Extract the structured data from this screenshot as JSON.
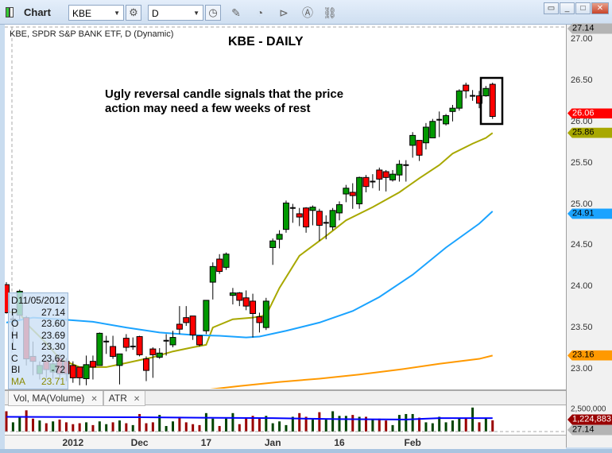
{
  "window": {
    "title": "Chart",
    "symbol": "KBE",
    "period": "D",
    "toolbar_icons": [
      "gear-icon",
      "clock-icon",
      "pencil-icon",
      "indicator-icon",
      "play-icon",
      "alert-icon",
      "link-icon"
    ],
    "window_buttons": [
      "restore-icon",
      "minimize-icon",
      "maximize-icon",
      "close-icon"
    ]
  },
  "chart": {
    "legend": "KBE, SPDR S&P BANK ETF, D (Dynamic)",
    "title": "KBE - DAILY",
    "annotation_line1": "Ugly reversal candle signals that the price",
    "annotation_line2": "action may need a few weeks of rest",
    "highlight_box_candles": [
      72,
      73
    ]
  },
  "price_axis": {
    "ticks": [
      "27.00",
      "26.50",
      "26.00",
      "25.50",
      "25.00",
      "24.50",
      "24.00",
      "23.50",
      "23.00"
    ],
    "tags": [
      {
        "label": "27.14",
        "color": "#b4b4b4",
        "text": "#000",
        "price": 27.14
      },
      {
        "label": "26.06",
        "color": "#ff0000",
        "text": "#fff",
        "price": 26.06
      },
      {
        "label": "25.86",
        "color": "#a8a800",
        "text": "#000",
        "price": 25.86
      },
      {
        "label": "24.91",
        "color": "#1aa3ff",
        "text": "#000",
        "price": 24.91
      },
      {
        "label": "23.16",
        "color": "#ff9900",
        "text": "#000",
        "price": 23.16
      }
    ]
  },
  "volume_axis": {
    "tick": "2,500,000",
    "last_volume": "1,224,883",
    "last_price": "27.14"
  },
  "tabs": [
    {
      "label": "Vol, MA(Volume)"
    },
    {
      "label": "ATR"
    }
  ],
  "x_axis": {
    "labels": [
      {
        "label": "2012",
        "index": 10
      },
      {
        "label": "Dec",
        "index": 20
      },
      {
        "label": "17",
        "index": 30
      },
      {
        "label": "Jan",
        "index": 40
      },
      {
        "label": "16",
        "index": 50
      },
      {
        "label": "Feb",
        "index": 61
      }
    ]
  },
  "tooltip": [
    {
      "k": "D",
      "v": "11/05/2012"
    },
    {
      "k": "P",
      "v": "27.14"
    },
    {
      "k": "O",
      "v": "23.60"
    },
    {
      "k": "H",
      "v": "23.69"
    },
    {
      "k": "L",
      "v": "23.30"
    },
    {
      "k": "C",
      "v": "23.62"
    },
    {
      "k": "BI",
      "v": "-72"
    },
    {
      "k": "MA",
      "v": "23.71"
    }
  ],
  "colors": {
    "up": "#009900",
    "down": "#ff0000",
    "ma_short": "#a8a800",
    "ma_mid": "#1aa3ff",
    "ma_long": "#ff9900",
    "vol_up": "#004400",
    "vol_down": "#990000",
    "vol_ma": "#0000ff"
  },
  "chart_data": {
    "type": "candlestick",
    "ylim": [
      22.75,
      27.2
    ],
    "ohlc": [
      [
        24.02,
        24.05,
        23.67,
        23.68
      ],
      [
        23.6,
        23.67,
        23.23,
        23.6
      ],
      [
        23.65,
        23.96,
        23.6,
        23.94
      ],
      [
        23.62,
        23.64,
        23.04,
        23.12
      ],
      [
        23.15,
        23.33,
        22.92,
        23.09
      ],
      [
        22.94,
        23.09,
        22.87,
        23.04
      ],
      [
        23.09,
        23.13,
        22.89,
        22.99
      ],
      [
        22.96,
        23.12,
        22.88,
        23.06
      ],
      [
        23.13,
        23.18,
        22.87,
        22.94
      ],
      [
        23.09,
        23.13,
        22.85,
        22.94
      ],
      [
        23.04,
        23.09,
        22.83,
        22.89
      ],
      [
        23.02,
        23.02,
        22.8,
        22.89
      ],
      [
        22.88,
        23.16,
        22.8,
        23.05
      ],
      [
        23.09,
        23.16,
        22.87,
        23.02
      ],
      [
        23.04,
        23.44,
        23.04,
        23.43
      ],
      [
        23.33,
        23.4,
        23.18,
        23.33
      ],
      [
        23.27,
        23.4,
        23.12,
        23.15
      ],
      [
        23.04,
        23.18,
        22.81,
        23.18
      ],
      [
        23.37,
        23.42,
        23.21,
        23.26
      ],
      [
        23.27,
        23.38,
        23.23,
        23.27
      ],
      [
        23.39,
        23.4,
        23.15,
        23.17
      ],
      [
        23.12,
        23.15,
        22.85,
        22.98
      ],
      [
        23.24,
        23.26,
        22.89,
        23.17
      ],
      [
        23.14,
        23.25,
        23.12,
        23.19
      ],
      [
        23.34,
        23.42,
        23.16,
        23.34
      ],
      [
        23.29,
        23.46,
        23.26,
        23.38
      ],
      [
        23.54,
        23.76,
        23.42,
        23.48
      ],
      [
        23.62,
        23.76,
        23.52,
        23.56
      ],
      [
        23.64,
        23.64,
        23.35,
        23.41
      ],
      [
        23.4,
        23.4,
        23.27,
        23.29
      ],
      [
        23.46,
        23.83,
        23.42,
        23.83
      ],
      [
        24.05,
        24.29,
        23.84,
        24.24
      ],
      [
        24.33,
        24.39,
        24.15,
        24.18
      ],
      [
        24.23,
        24.41,
        24.2,
        24.39
      ],
      [
        23.89,
        23.98,
        23.78,
        23.92
      ],
      [
        23.92,
        23.93,
        23.76,
        23.83
      ],
      [
        23.86,
        23.95,
        23.71,
        23.76
      ],
      [
        23.82,
        23.91,
        23.38,
        23.67
      ],
      [
        23.63,
        23.68,
        23.44,
        23.56
      ],
      [
        23.5,
        23.86,
        23.47,
        23.82
      ],
      [
        24.47,
        24.58,
        24.26,
        24.55
      ],
      [
        24.57,
        24.68,
        24.46,
        24.63
      ],
      [
        24.69,
        25.04,
        24.65,
        25.01
      ],
      [
        24.95,
        25.0,
        24.77,
        24.95
      ],
      [
        24.88,
        24.95,
        24.73,
        24.84
      ],
      [
        24.95,
        24.96,
        24.65,
        24.72
      ],
      [
        24.92,
        24.98,
        24.74,
        24.96
      ],
      [
        24.91,
        24.94,
        24.55,
        24.74
      ],
      [
        24.77,
        24.86,
        24.57,
        24.77
      ],
      [
        24.72,
        24.95,
        24.68,
        24.92
      ],
      [
        24.89,
        25.03,
        24.8,
        24.99
      ],
      [
        25.12,
        25.23,
        25.02,
        25.19
      ],
      [
        25.14,
        25.25,
        24.94,
        25.1
      ],
      [
        25.0,
        25.33,
        24.94,
        25.32
      ],
      [
        25.32,
        25.35,
        25.14,
        25.21
      ],
      [
        25.27,
        25.36,
        25.19,
        25.27
      ],
      [
        25.41,
        25.44,
        25.16,
        25.3
      ],
      [
        25.39,
        25.41,
        25.15,
        25.32
      ],
      [
        25.29,
        25.41,
        25.27,
        25.36
      ],
      [
        25.35,
        25.53,
        25.27,
        25.48
      ],
      [
        25.47,
        25.53,
        25.27,
        25.47
      ],
      [
        25.71,
        25.87,
        25.56,
        25.83
      ],
      [
        25.77,
        25.77,
        25.52,
        25.59
      ],
      [
        25.74,
        25.98,
        25.66,
        25.93
      ],
      [
        25.8,
        26.03,
        25.8,
        26.0
      ],
      [
        26.02,
        26.12,
        25.81,
        26.02
      ],
      [
        25.97,
        26.09,
        25.95,
        26.07
      ],
      [
        26.12,
        26.2,
        26.0,
        26.16
      ],
      [
        26.16,
        26.39,
        26.13,
        26.37
      ],
      [
        26.44,
        26.47,
        26.28,
        26.37
      ],
      [
        26.31,
        26.38,
        26.25,
        26.31
      ],
      [
        26.31,
        26.37,
        26.16,
        26.22
      ],
      [
        26.31,
        26.43,
        26.3,
        26.4
      ],
      [
        26.45,
        26.47,
        26.03,
        26.06
      ]
    ],
    "moving_averages": [
      {
        "color": "#a8a800",
        "points": [
          [
            0,
            23.69
          ],
          [
            2,
            23.68
          ],
          [
            3,
            23.55
          ],
          [
            6,
            23.31
          ],
          [
            8,
            23.12
          ],
          [
            11,
            23.02
          ],
          [
            15,
            23.02
          ],
          [
            18,
            23.07
          ],
          [
            22,
            23.14
          ],
          [
            25,
            23.21
          ],
          [
            28,
            23.26
          ],
          [
            30,
            23.29
          ],
          [
            31,
            23.5
          ],
          [
            34,
            23.6
          ],
          [
            37,
            23.62
          ],
          [
            39,
            23.65
          ],
          [
            41,
            23.98
          ],
          [
            44,
            24.37
          ],
          [
            48,
            24.61
          ],
          [
            51,
            24.8
          ],
          [
            55,
            24.96
          ],
          [
            59,
            25.14
          ],
          [
            62,
            25.31
          ],
          [
            65,
            25.47
          ],
          [
            67,
            25.61
          ],
          [
            70,
            25.73
          ],
          [
            72,
            25.8
          ],
          [
            73,
            25.86
          ]
        ]
      },
      {
        "color": "#1aa3ff",
        "points": [
          [
            0,
            23.56
          ],
          [
            4,
            23.62
          ],
          [
            8,
            23.6
          ],
          [
            13,
            23.57
          ],
          [
            18,
            23.5
          ],
          [
            23,
            23.44
          ],
          [
            28,
            23.41
          ],
          [
            32,
            23.4
          ],
          [
            36,
            23.38
          ],
          [
            38,
            23.39
          ],
          [
            42,
            23.46
          ],
          [
            47,
            23.56
          ],
          [
            52,
            23.7
          ],
          [
            56,
            23.87
          ],
          [
            61,
            24.14
          ],
          [
            66,
            24.47
          ],
          [
            71,
            24.76
          ],
          [
            73,
            24.91
          ]
        ]
      },
      {
        "color": "#ff9900",
        "points": [
          [
            29.5,
            22.74
          ],
          [
            35,
            22.79
          ],
          [
            41,
            22.84
          ],
          [
            47,
            22.88
          ],
          [
            53,
            22.93
          ],
          [
            59,
            22.99
          ],
          [
            65,
            23.06
          ],
          [
            71,
            23.12
          ],
          [
            73,
            23.16
          ]
        ]
      }
    ],
    "volume_millions": [
      2.2,
      1.0,
      1.6,
      2.3,
      1.4,
      1.2,
      0.9,
      1.1,
      1.3,
      1.0,
      0.8,
      0.9,
      1.0,
      0.7,
      1.1,
      0.8,
      1.0,
      1.2,
      0.9,
      0.7,
      1.9,
      0.9,
      1.0,
      1.8,
      0.6,
      1.1,
      1.6,
      1.0,
      0.8,
      0.7,
      2.0,
      1.4,
      0.6,
      1.4,
      2.0,
      0.8,
      1.4,
      1.7,
      1.5,
      1.7,
      0.9,
      1.1,
      0.7,
      1.6,
      2.0,
      1.6,
      1.3,
      2.1,
      1.3,
      2.2,
      1.7,
      1.7,
      1.8,
      1.6,
      1.6,
      1.3,
      1.4,
      1.2,
      0.7,
      1.8,
      1.9,
      1.9,
      1.5,
      1.0,
      0.9,
      1.6,
      1.0,
      1.2,
      1.4,
      1.5,
      2.6,
      1.0,
      1.4,
      1.22
    ],
    "volume_ma_millions": [
      [
        0,
        1.6
      ],
      [
        20,
        1.55
      ],
      [
        40,
        1.45
      ],
      [
        50,
        1.35
      ],
      [
        60,
        1.3
      ],
      [
        65,
        1.45
      ],
      [
        73,
        1.45
      ]
    ]
  }
}
